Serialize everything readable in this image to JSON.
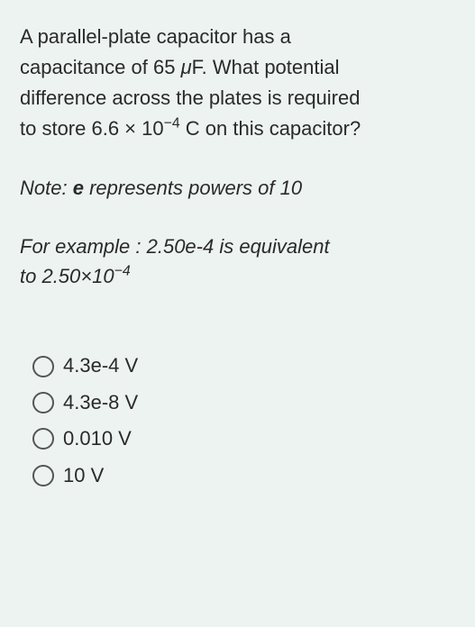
{
  "question": {
    "line1": "A parallel-plate capacitor has a",
    "line2_pre": "capacitance of 65 ",
    "line2_mu": "μ",
    "line2_post": "F. What potential",
    "line3": "difference across the plates is required",
    "line4_pre": "to store 6.6 × 10",
    "line4_exp": "−4",
    "line4_post": " C on this capacitor?"
  },
  "note": {
    "prefix": "Note: ",
    "bold": "e",
    "suffix": " represents powers of 10"
  },
  "example": {
    "line1": "For example : 2.50e-4 is equivalent",
    "line2_pre": "to 2.50×10",
    "line2_exp": "−4"
  },
  "options": [
    {
      "label": "4.3e-4 V"
    },
    {
      "label": "4.3e-8 V"
    },
    {
      "label": "0.010 V"
    },
    {
      "label": "10 V"
    }
  ],
  "colors": {
    "background": "#edf3f1",
    "text": "#2a2a2a",
    "radio_border": "#555555"
  },
  "typography": {
    "font_family": "Arial, Helvetica, sans-serif",
    "question_fontsize": 22,
    "option_fontsize": 22,
    "line_height": 1.55
  }
}
